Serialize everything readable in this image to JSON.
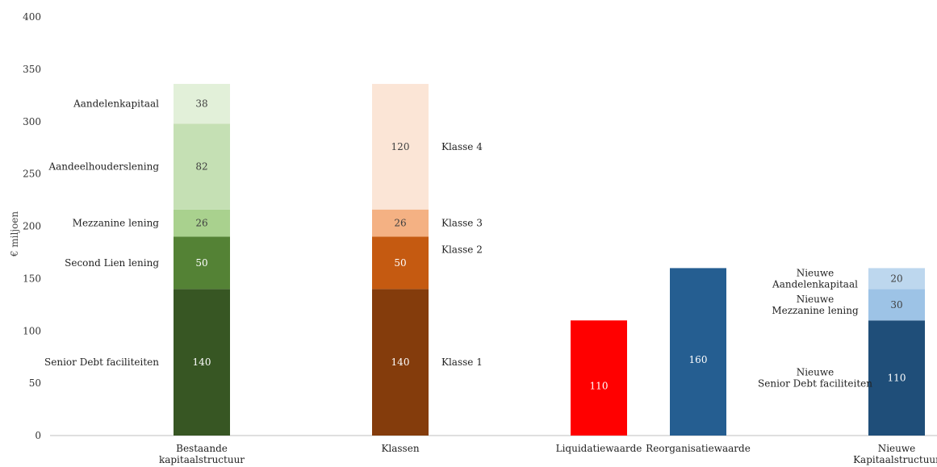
{
  "chart_data": {
    "type": "bar",
    "stacked": true,
    "ylabel": "€ miljoen",
    "ylim": [
      0,
      400
    ],
    "yticks": [
      0,
      50,
      100,
      150,
      200,
      250,
      300,
      350,
      400
    ],
    "grid": false,
    "legend": "none",
    "categories": [
      "Bestaande kapitaalstructuur",
      "Klassen",
      "Liquidatiewaarde",
      "Reorganisatiewaarde",
      "Nieuwe Kapitaalstructuur"
    ],
    "bars": [
      {
        "category": "Bestaande kapitaalstructuur",
        "category_lines": [
          "Bestaande",
          "kapitaalstructuur"
        ],
        "segments": [
          {
            "label": "Senior Debt faciliteiten",
            "label_lines": [
              "Senior Debt faciliteiten"
            ],
            "value": 140,
            "color": "#375623",
            "text_color": "#ffffff",
            "label_side": "left"
          },
          {
            "label": "Second Lien lening",
            "label_lines": [
              "Second Lien lening"
            ],
            "value": 50,
            "color": "#548235",
            "text_color": "#ffffff",
            "label_side": "left"
          },
          {
            "label": "Mezzanine lening",
            "label_lines": [
              "Mezzanine lening"
            ],
            "value": 26,
            "color": "#a9d18e",
            "text_color": "#404040",
            "label_side": "left"
          },
          {
            "label": "Aandeelhouderslening",
            "label_lines": [
              "Aandeelhouderslening"
            ],
            "value": 82,
            "color": "#c5e0b4",
            "text_color": "#404040",
            "label_side": "left"
          },
          {
            "label": "Aandelenkapitaal",
            "label_lines": [
              "Aandelenkapitaal"
            ],
            "value": 38,
            "color": "#e2f0d9",
            "text_color": "#404040",
            "label_side": "left"
          }
        ]
      },
      {
        "category": "Klassen",
        "category_lines": [
          "Klassen"
        ],
        "segments": [
          {
            "label": "Klasse 1",
            "label_lines": [
              "Klasse 1"
            ],
            "value": 140,
            "color": "#843c0c",
            "text_color": "#ffffff",
            "label_side": "right"
          },
          {
            "label": "Klasse 2",
            "label_lines": [
              "Klasse 2"
            ],
            "value": 50,
            "color": "#c55a11",
            "text_color": "#ffffff",
            "label_side": "right",
            "label_at_top": true
          },
          {
            "label": "Klasse 3",
            "label_lines": [
              "Klasse 3"
            ],
            "value": 26,
            "color": "#f4b183",
            "text_color": "#404040",
            "label_side": "right"
          },
          {
            "label": "Klasse 4",
            "label_lines": [
              "Klasse 4"
            ],
            "value": 120,
            "color": "#fbe5d6",
            "text_color": "#404040",
            "label_side": "right"
          }
        ]
      },
      {
        "category": "Liquidatiewaarde",
        "category_lines": [
          "Liquidatiewaarde"
        ],
        "segments": [
          {
            "label": "",
            "label_lines": [],
            "value": 110,
            "color": "#ff0000",
            "text_color": "#ffffff",
            "label_side": "none"
          }
        ]
      },
      {
        "category": "Reorganisatiewaarde",
        "category_lines": [
          "Reorganisatiewaarde"
        ],
        "segments": [
          {
            "label": "",
            "label_lines": [],
            "value": 160,
            "color": "#255e91",
            "text_color": "#ffffff",
            "label_side": "none"
          }
        ]
      },
      {
        "category": "Nieuwe Kapitaalstructuur",
        "category_lines": [
          "Nieuwe",
          "Kapitaalstructuur"
        ],
        "segments": [
          {
            "label": "Nieuwe Senior Debt faciliteiten",
            "label_lines": [
              "Nieuwe",
              "Senior Debt faciliteiten"
            ],
            "value": 110,
            "color": "#1f4e79",
            "text_color": "#ffffff",
            "label_side": "left"
          },
          {
            "label": "Nieuwe Mezzanine lening",
            "label_lines": [
              "Nieuwe",
              "Mezzanine lening"
            ],
            "value": 30,
            "color": "#9dc3e6",
            "text_color": "#404040",
            "label_side": "left"
          },
          {
            "label": "Nieuwe Aandelenkapitaal",
            "label_lines": [
              "Nieuwe",
              "Aandelenkapitaal"
            ],
            "value": 20,
            "color": "#bdd7ee",
            "text_color": "#404040",
            "label_side": "left"
          }
        ]
      }
    ]
  }
}
